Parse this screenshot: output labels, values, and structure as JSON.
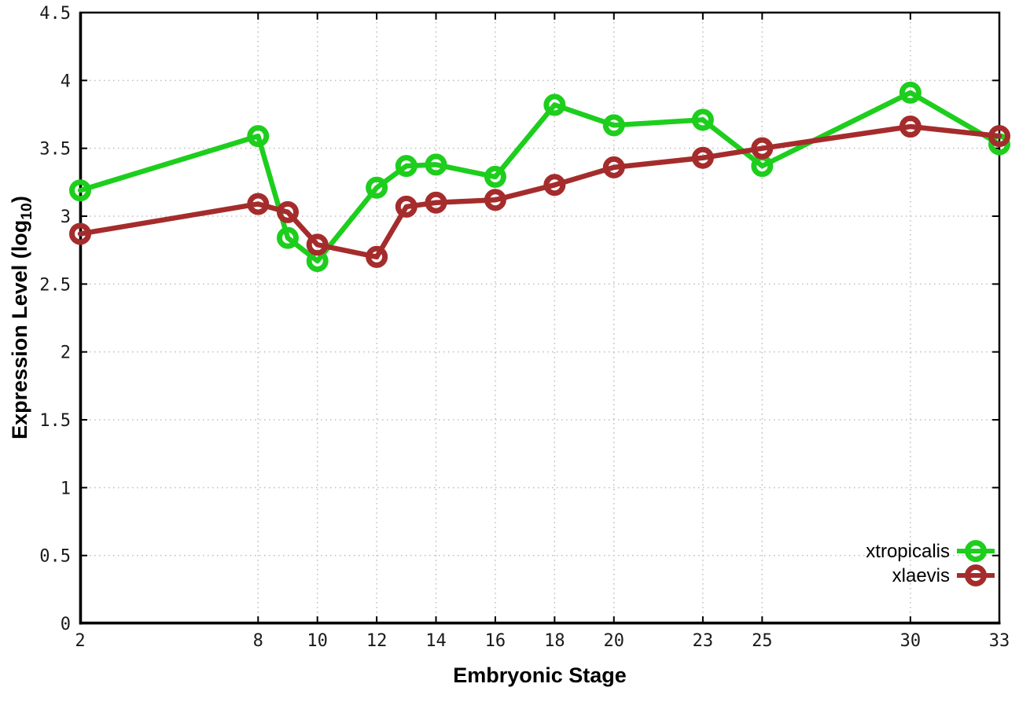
{
  "chart_data": {
    "type": "line",
    "title": "",
    "xlabel": "Embryonic Stage",
    "ylabel": "Expression Level (log10)",
    "ylabel_parts": {
      "main": "Expression Level (log",
      "sub": "10",
      "end": ")"
    },
    "xlim": [
      2,
      33
    ],
    "ylim": [
      0,
      4.5
    ],
    "grid": true,
    "grid_style": "dotted",
    "legend_position": "bottom-right",
    "marker": "open-circle",
    "xticks": [
      2,
      8,
      10,
      12,
      14,
      16,
      18,
      20,
      23,
      25,
      30,
      33
    ],
    "xtick_labels": [
      "2",
      "8",
      "10",
      "12",
      "14",
      "16",
      "18",
      "20",
      "23",
      "25",
      "30",
      "33"
    ],
    "yticks": [
      0,
      0.5,
      1,
      1.5,
      2,
      2.5,
      3,
      3.5,
      4,
      4.5
    ],
    "ytick_labels": [
      "0",
      "0.5",
      "1",
      "1.5",
      "2",
      "2.5",
      "3",
      "3.5",
      "4",
      "4.5"
    ],
    "x": [
      2,
      8,
      9,
      10,
      12,
      13,
      14,
      16,
      18,
      20,
      23,
      25,
      30,
      33
    ],
    "series": [
      {
        "name": "xtropicalis",
        "color": "#1dce1d",
        "values": [
          3.19,
          3.59,
          2.84,
          2.67,
          3.21,
          3.37,
          3.38,
          3.29,
          3.82,
          3.67,
          3.71,
          3.37,
          3.91,
          3.53
        ]
      },
      {
        "name": "xlaevis",
        "color": "#a52c2c",
        "values": [
          2.87,
          3.09,
          3.03,
          2.79,
          2.7,
          3.07,
          3.1,
          3.12,
          3.23,
          3.36,
          3.43,
          3.5,
          3.66,
          3.59
        ]
      }
    ],
    "axis_color": "#000000",
    "gridline_color": "#bdbdbd",
    "tick_label_color": "#1a1a1a"
  }
}
